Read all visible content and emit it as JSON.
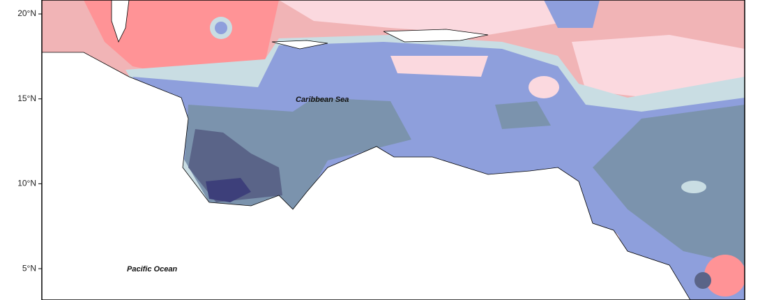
{
  "map": {
    "axis": {
      "yticks": [
        "20°N",
        "15°N",
        "10°N",
        "5°N"
      ]
    },
    "labels": {
      "sea": "Caribbean Sea",
      "ocean": "Pacific Ocean"
    }
  }
}
